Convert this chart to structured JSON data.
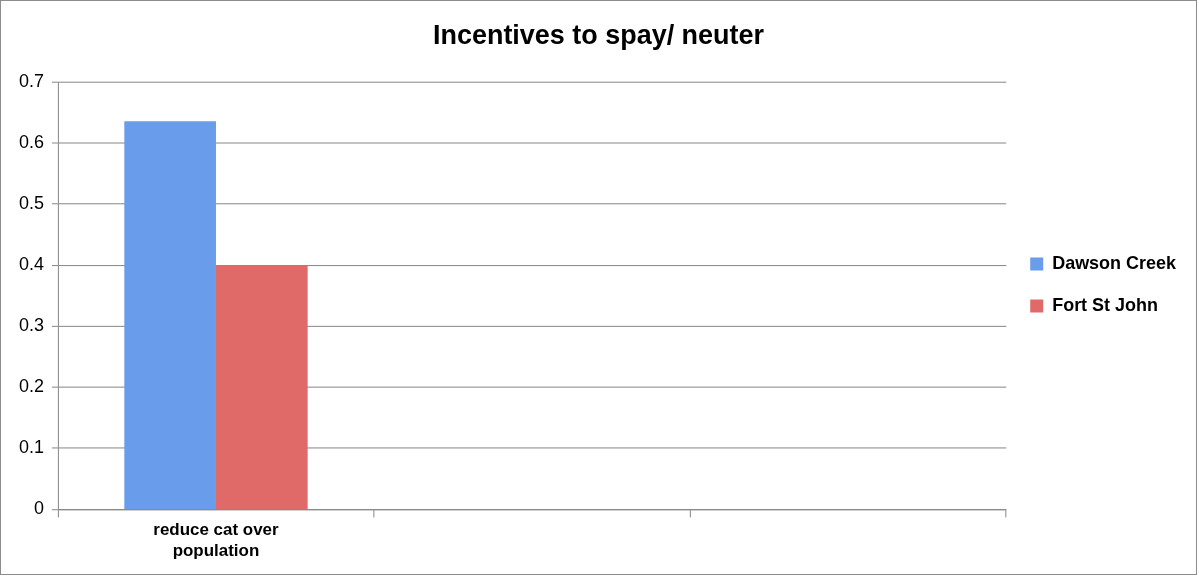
{
  "chart_data": {
    "type": "bar",
    "title": "Incentives to spay/ neuter",
    "categories": [
      "reduce cat over population",
      null,
      null
    ],
    "series": [
      {
        "name": "Dawson Creek",
        "color": "#6a9cec",
        "values": [
          0.636,
          null,
          null
        ]
      },
      {
        "name": "Fort St John",
        "color": "#e06a68",
        "values": [
          0.4,
          null,
          null
        ]
      }
    ],
    "ylim": [
      0,
      0.7
    ],
    "yticks": [
      0,
      0.1,
      0.2,
      0.3,
      0.4,
      0.5,
      0.6,
      0.7
    ],
    "grid": "y",
    "legend": "right"
  }
}
